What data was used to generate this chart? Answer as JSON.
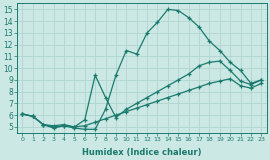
{
  "xlabel": "Humidex (Indice chaleur)",
  "xlim": [
    -0.5,
    23.5
  ],
  "ylim": [
    4.5,
    15.5
  ],
  "xticks": [
    0,
    1,
    2,
    3,
    4,
    5,
    6,
    7,
    8,
    9,
    10,
    11,
    12,
    13,
    14,
    15,
    16,
    17,
    18,
    19,
    20,
    21,
    22,
    23
  ],
  "yticks": [
    5,
    6,
    7,
    8,
    9,
    10,
    11,
    12,
    13,
    14,
    15
  ],
  "background_color": "#cce8e4",
  "grid_color": "#b0d4d0",
  "line_color": "#1a7a6e",
  "line1_x": [
    0,
    1,
    2,
    3,
    4,
    5,
    6,
    7,
    8,
    9,
    10,
    11,
    12,
    13,
    14,
    15,
    16,
    17,
    18,
    19,
    20,
    21,
    22,
    23
  ],
  "line1_y": [
    6.1,
    5.9,
    5.2,
    4.9,
    5.1,
    4.9,
    4.8,
    4.8,
    6.5,
    9.4,
    11.5,
    11.2,
    13.0,
    13.9,
    15.0,
    14.9,
    14.3,
    13.5,
    12.3,
    11.5,
    10.5,
    9.8,
    8.7,
    9.0
  ],
  "line2_x": [
    0,
    1,
    2,
    3,
    4,
    5,
    6,
    7,
    8,
    9,
    10,
    11,
    12,
    13,
    14,
    15,
    16,
    17,
    18,
    19,
    20,
    21,
    22,
    23
  ],
  "line2_y": [
    6.1,
    5.9,
    5.2,
    5.1,
    5.2,
    5.0,
    5.6,
    9.4,
    7.5,
    5.8,
    6.5,
    7.0,
    7.5,
    8.0,
    8.5,
    9.0,
    9.5,
    10.2,
    10.5,
    10.6,
    9.8,
    8.9,
    8.6,
    9.0
  ],
  "line3_x": [
    0,
    1,
    2,
    3,
    4,
    5,
    6,
    7,
    8,
    9,
    10,
    11,
    12,
    13,
    14,
    15,
    16,
    17,
    18,
    19,
    20,
    21,
    22,
    23
  ],
  "line3_y": [
    6.1,
    5.9,
    5.2,
    5.0,
    5.1,
    5.0,
    5.1,
    5.4,
    5.7,
    6.0,
    6.3,
    6.6,
    6.9,
    7.2,
    7.5,
    7.8,
    8.1,
    8.4,
    8.7,
    8.9,
    9.1,
    8.5,
    8.3,
    8.7
  ]
}
